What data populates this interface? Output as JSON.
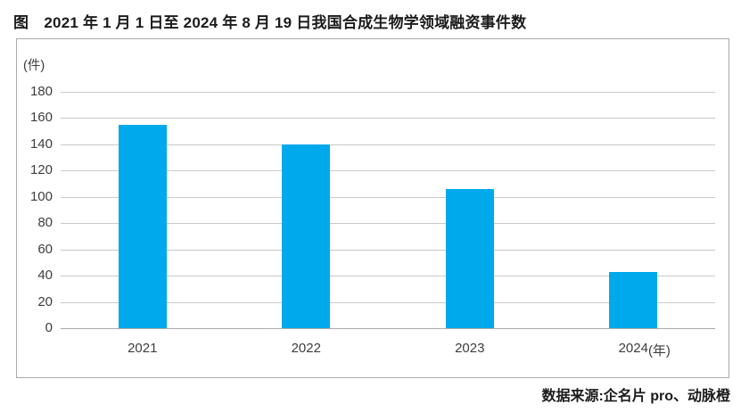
{
  "figure": {
    "title": "图　2021 年 1 月 1 日至 2024 年 8 月 19 日我国合成生物学领域融资事件数",
    "source": "数据来源:企名片 pro、动脉橙"
  },
  "chart_data": {
    "type": "bar",
    "title": "2021 年 1 月 1 日至 2024 年 8 月 19 日我国合成生物学领域融资事件数",
    "unit_label": "(件)",
    "categories": [
      "2021",
      "2022",
      "2023",
      "2024"
    ],
    "x_axis_suffix": "(年)",
    "values": [
      155,
      140,
      106,
      43
    ],
    "ylim": [
      0,
      180
    ],
    "ytick_step": 20,
    "yticks": [
      180,
      160,
      140,
      120,
      100,
      80,
      60,
      40,
      20,
      0
    ],
    "grid": true,
    "legend": "none",
    "source": "数据来源:企名片 pro、动脉橙"
  },
  "colors": {
    "bar": "#00a9ec",
    "gridline": "#c9c9c9",
    "zero_line": "#ababab",
    "box_border": "#a9a9a9",
    "title_text": "#1b1b1b",
    "tick_text": "#3d3d3d"
  }
}
